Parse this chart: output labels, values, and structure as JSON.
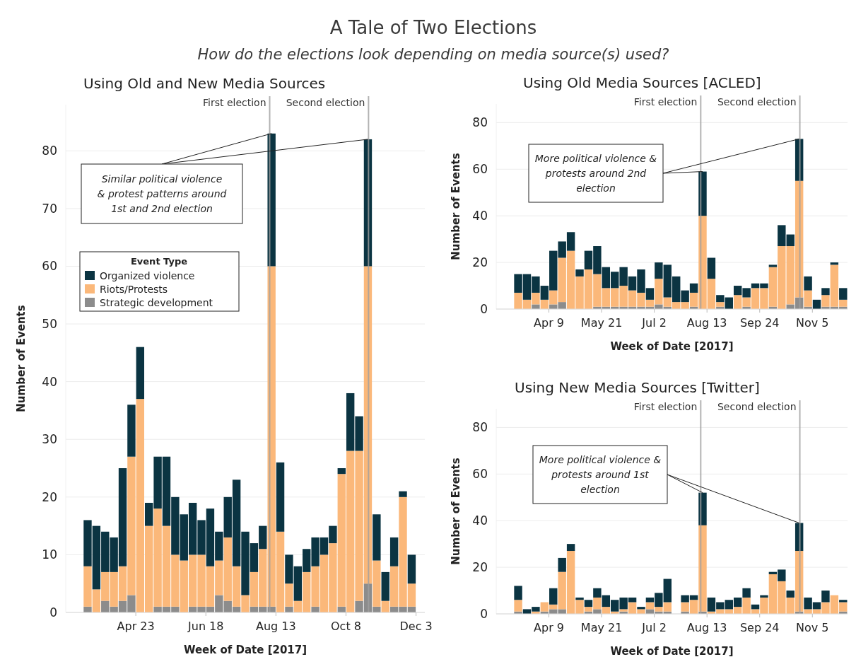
{
  "chart_data": [
    {
      "type": "bar",
      "title": "Using Old and New Media Sources",
      "xlabel": "Week of Date [2017]",
      "ylabel": "Number of Events",
      "stacked": true,
      "legend": "left",
      "legend_title": "Event Type",
      "grid": "y",
      "annotations": [
        "A Tale of Two Elections",
        "How do the elections look depending on media source(s) used?",
        {
          "text": "Similar political violence & protest patterns around 1st and 2nd election",
          "x": "2017-08-09T12:00",
          "y": 83
        }
      ],
      "x": [
        "2017-03-15T12:00",
        "2017-03-22T12:00",
        "2017-03-29T12:00",
        "2017-04-05T12:00",
        "2017-04-12T12:00",
        "2017-04-19T12:00",
        "2017-04-26T12:00",
        "2017-05-03T12:00",
        "2017-05-10T12:00",
        "2017-05-17T12:00",
        "2017-05-24T12:00",
        "2017-05-31T12:00",
        "2017-06-07T12:00",
        "2017-06-14T12:00",
        "2017-06-21T12:00",
        "2017-06-28T12:00",
        "2017-07-05T12:00",
        "2017-07-12T12:00",
        "2017-07-19T12:00",
        "2017-07-26T12:00",
        "2017-08-02T12:00",
        "2017-08-09T12:00",
        "2017-08-16T12:00",
        "2017-08-23T12:00",
        "2017-08-30T12:00",
        "2017-09-06T12:00",
        "2017-09-13T12:00",
        "2017-09-20T12:00",
        "2017-09-27T12:00",
        "2017-10-04T12:00",
        "2017-10-11T12:00",
        "2017-10-18T12:00",
        "2017-10-25T12:00",
        "2017-11-01T12:00",
        "2017-11-08T12:00",
        "2017-11-15T12:00",
        "2017-11-22T12:00",
        "2017-11-29T12:00"
      ],
      "xlim": [
        "2017-02-26",
        "2017-12-10"
      ],
      "xticks": [
        {
          "value": "2017-04-23",
          "label": "Apr 23"
        },
        {
          "value": "2017-06-18",
          "label": "Jun 18"
        },
        {
          "value": "2017-08-13",
          "label": "Aug 13"
        },
        {
          "value": "2017-10-08",
          "label": "Oct 8"
        },
        {
          "value": "2017-12-03",
          "label": "Dec 3"
        }
      ],
      "ylim": [
        0,
        88
      ],
      "yticks": [
        0,
        10,
        20,
        30,
        40,
        50,
        60,
        70,
        80
      ],
      "ref_lines": [
        {
          "axis": "x",
          "value": "2017-08-08",
          "label": "First election",
          "color": "#a0a0a0"
        },
        {
          "axis": "x",
          "value": "2017-10-26",
          "label": "Second election",
          "color": "#a0a0a0"
        }
      ],
      "series": [
        {
          "name": "Strategic development",
          "color": "#8c8c8c",
          "values": [
            1,
            0,
            2,
            1,
            2,
            3,
            0,
            0,
            1,
            1,
            1,
            0,
            1,
            1,
            1,
            3,
            2,
            1,
            0,
            1,
            1,
            1,
            0,
            1,
            0,
            0,
            1,
            0,
            0,
            1,
            0,
            2,
            5,
            1,
            0,
            1,
            1,
            1
          ]
        },
        {
          "name": "Riots/Protests",
          "color": "#fbb87a",
          "values": [
            7,
            4,
            5,
            6,
            6,
            24,
            37,
            15,
            17,
            14,
            9,
            9,
            9,
            9,
            7,
            6,
            11,
            7,
            3,
            6,
            10,
            59,
            14,
            4,
            2,
            7,
            7,
            10,
            12,
            23,
            28,
            26,
            55,
            8,
            2,
            7,
            19,
            4
          ]
        },
        {
          "name": "Organized violence",
          "color": "#0b3442",
          "values": [
            8,
            11,
            7,
            6,
            17,
            9,
            9,
            4,
            9,
            12,
            10,
            8,
            9,
            6,
            10,
            5,
            7,
            15,
            11,
            5,
            4,
            23,
            12,
            5,
            6,
            4,
            5,
            3,
            3,
            1,
            10,
            6,
            22,
            8,
            5,
            5,
            1,
            5
          ]
        }
      ]
    },
    {
      "type": "bar",
      "title": "Using Old Media Sources [ACLED]",
      "xlabel": "Week of Date [2017]",
      "ylabel": "Number of Events",
      "stacked": true,
      "grid": "y",
      "annotations": [
        {
          "text": "More political violence & protests around 2nd election",
          "x": "2017-08-09T12:00",
          "y": 59
        }
      ],
      "x": [
        "2017-03-15T12:00",
        "2017-03-22T12:00",
        "2017-03-29T12:00",
        "2017-04-05T12:00",
        "2017-04-12T12:00",
        "2017-04-19T12:00",
        "2017-04-26T12:00",
        "2017-05-03T12:00",
        "2017-05-10T12:00",
        "2017-05-17T12:00",
        "2017-05-24T12:00",
        "2017-05-31T12:00",
        "2017-06-07T12:00",
        "2017-06-14T12:00",
        "2017-06-21T12:00",
        "2017-06-28T12:00",
        "2017-07-05T12:00",
        "2017-07-12T12:00",
        "2017-07-19T12:00",
        "2017-07-26T12:00",
        "2017-08-02T12:00",
        "2017-08-09T12:00",
        "2017-08-16T12:00",
        "2017-08-23T12:00",
        "2017-08-30T12:00",
        "2017-09-06T12:00",
        "2017-09-13T12:00",
        "2017-09-20T12:00",
        "2017-09-27T12:00",
        "2017-10-04T12:00",
        "2017-10-11T12:00",
        "2017-10-18T12:00",
        "2017-10-25T12:00",
        "2017-11-01T12:00",
        "2017-11-08T12:00",
        "2017-11-15T12:00",
        "2017-11-22T12:00",
        "2017-11-29T12:00"
      ],
      "xlim": [
        "2017-02-26",
        "2017-12-03"
      ],
      "xticks": [
        {
          "value": "2017-04-09",
          "label": "Apr 9"
        },
        {
          "value": "2017-05-21",
          "label": "May 21"
        },
        {
          "value": "2017-07-02",
          "label": "Jul 2"
        },
        {
          "value": "2017-08-13",
          "label": "Aug 13"
        },
        {
          "value": "2017-09-24",
          "label": "Sep 24"
        },
        {
          "value": "2017-11-05",
          "label": "Nov 5"
        }
      ],
      "ylim": [
        0,
        88
      ],
      "yticks": [
        0,
        20,
        40,
        60,
        80
      ],
      "ref_lines": [
        {
          "axis": "x",
          "value": "2017-08-08",
          "label": "First election",
          "color": "#a0a0a0"
        },
        {
          "axis": "x",
          "value": "2017-10-26",
          "label": "Second election",
          "color": "#a0a0a0"
        }
      ],
      "series": [
        {
          "color": "#8c8c8c",
          "values": [
            0,
            0,
            2,
            0,
            2,
            3,
            0,
            0,
            0,
            1,
            1,
            1,
            1,
            1,
            1,
            1,
            2,
            1,
            0,
            0,
            1,
            0,
            0,
            1,
            0,
            0,
            1,
            0,
            0,
            1,
            0,
            2,
            5,
            1,
            0,
            1,
            1,
            1
          ]
        },
        {
          "color": "#fbb87a",
          "values": [
            7,
            4,
            5,
            4,
            6,
            19,
            25,
            14,
            17,
            14,
            8,
            8,
            9,
            7,
            6,
            3,
            11,
            4,
            3,
            3,
            6,
            40,
            13,
            2,
            0,
            6,
            4,
            9,
            9,
            17,
            27,
            25,
            50,
            7,
            0,
            5,
            18,
            3
          ]
        },
        {
          "color": "#0b3442",
          "values": [
            8,
            11,
            7,
            6,
            17,
            7,
            8,
            3,
            8,
            12,
            9,
            7,
            8,
            6,
            10,
            5,
            7,
            14,
            11,
            5,
            4,
            19,
            9,
            3,
            5,
            4,
            4,
            2,
            2,
            1,
            9,
            5,
            18,
            6,
            4,
            3,
            1,
            5
          ]
        }
      ]
    },
    {
      "type": "bar",
      "title": "Using New Media Sources [Twitter]",
      "xlabel": "Week of Date [2017]",
      "ylabel": "Number of Events",
      "stacked": true,
      "grid": "y",
      "annotations": [
        {
          "text": "More political violence & protests around 1st election",
          "x": "2017-08-09T12:00",
          "y": 52
        }
      ],
      "x": [
        "2017-03-15T12:00",
        "2017-03-22T12:00",
        "2017-03-29T12:00",
        "2017-04-05T12:00",
        "2017-04-12T12:00",
        "2017-04-19T12:00",
        "2017-04-26T12:00",
        "2017-05-03T12:00",
        "2017-05-10T12:00",
        "2017-05-17T12:00",
        "2017-05-24T12:00",
        "2017-05-31T12:00",
        "2017-06-07T12:00",
        "2017-06-14T12:00",
        "2017-06-21T12:00",
        "2017-06-28T12:00",
        "2017-07-05T12:00",
        "2017-07-12T12:00",
        "2017-07-19T12:00",
        "2017-07-26T12:00",
        "2017-08-02T12:00",
        "2017-08-09T12:00",
        "2017-08-16T12:00",
        "2017-08-23T12:00",
        "2017-08-30T12:00",
        "2017-09-06T12:00",
        "2017-09-13T12:00",
        "2017-09-20T12:00",
        "2017-09-27T12:00",
        "2017-10-04T12:00",
        "2017-10-11T12:00",
        "2017-10-18T12:00",
        "2017-10-25T12:00",
        "2017-11-01T12:00",
        "2017-11-08T12:00",
        "2017-11-15T12:00",
        "2017-11-22T12:00",
        "2017-11-29T12:00"
      ],
      "xlim": [
        "2017-02-26",
        "2017-12-03"
      ],
      "xticks": [
        {
          "value": "2017-04-09",
          "label": "Apr 9"
        },
        {
          "value": "2017-05-21",
          "label": "May 21"
        },
        {
          "value": "2017-07-02",
          "label": "Jul 2"
        },
        {
          "value": "2017-08-13",
          "label": "Aug 13"
        },
        {
          "value": "2017-09-24",
          "label": "Sep 24"
        },
        {
          "value": "2017-11-05",
          "label": "Nov 5"
        }
      ],
      "ylim": [
        0,
        88
      ],
      "yticks": [
        0,
        20,
        40,
        60,
        80
      ],
      "ref_lines": [
        {
          "axis": "x",
          "value": "2017-08-08",
          "label": "First election",
          "color": "#a0a0a0"
        },
        {
          "axis": "x",
          "value": "2017-10-26",
          "label": "Second election",
          "color": "#a0a0a0"
        }
      ],
      "series": [
        {
          "color": "#8c8c8c",
          "values": [
            1,
            0,
            0,
            1,
            2,
            2,
            0,
            0,
            1,
            2,
            0,
            0,
            1,
            0,
            0,
            2,
            1,
            1,
            null,
            1,
            0,
            1,
            0,
            0,
            0,
            0,
            0,
            0,
            0,
            0,
            0,
            0,
            1,
            0,
            0,
            0,
            0,
            1
          ]
        },
        {
          "color": "#fbb87a",
          "values": [
            5,
            0,
            1,
            4,
            2,
            16,
            27,
            6,
            2,
            5,
            3,
            1,
            1,
            5,
            2,
            3,
            2,
            4,
            null,
            4,
            6,
            37,
            1,
            2,
            2,
            3,
            7,
            2,
            7,
            17,
            14,
            7,
            26,
            2,
            2,
            5,
            8,
            4
          ]
        },
        {
          "color": "#0b3442",
          "values": [
            6,
            2,
            2,
            0,
            7,
            6,
            3,
            1,
            3,
            4,
            5,
            5,
            5,
            2,
            1,
            2,
            6,
            10,
            null,
            3,
            2,
            14,
            6,
            3,
            4,
            4,
            4,
            2,
            1,
            1,
            5,
            3,
            12,
            5,
            3,
            5,
            0,
            1
          ]
        }
      ]
    }
  ]
}
